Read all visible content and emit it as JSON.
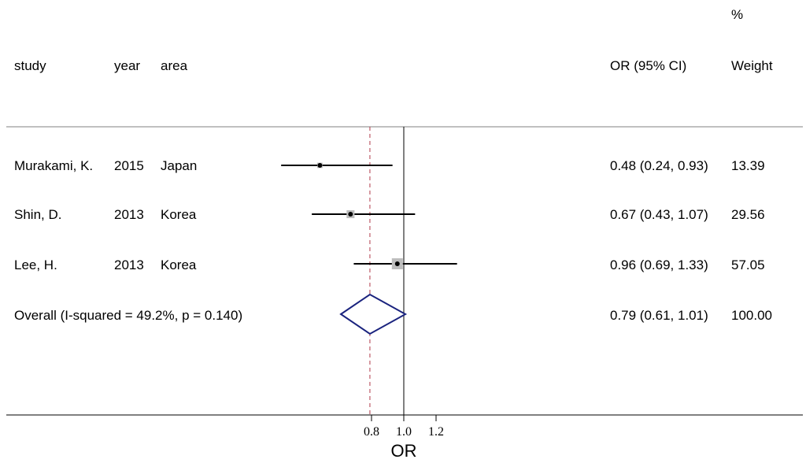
{
  "chart_data": {
    "type": "forest",
    "columns": {
      "study": "study",
      "year": "year",
      "area": "area",
      "estimate": "OR (95% CI)",
      "weight_unit": "%",
      "weight": "Weight"
    },
    "studies": [
      {
        "study": "Murakami, K.",
        "year": "2015",
        "area": "Japan",
        "or": 0.48,
        "lo": 0.24,
        "hi": 0.93,
        "ci_text": "0.48 (0.24, 0.93)",
        "weight": 13.39,
        "weight_text": "13.39"
      },
      {
        "study": "Shin, D.",
        "year": "2013",
        "area": "Korea",
        "or": 0.67,
        "lo": 0.43,
        "hi": 1.07,
        "ci_text": "0.67 (0.43, 1.07)",
        "weight": 29.56,
        "weight_text": "29.56"
      },
      {
        "study": "Lee, H.",
        "year": "2013",
        "area": "Korea",
        "or": 0.96,
        "lo": 0.69,
        "hi": 1.33,
        "ci_text": "0.96 (0.69, 1.33)",
        "weight": 57.05,
        "weight_text": "57.05"
      }
    ],
    "overall": {
      "label": "Overall  (I-squared = 49.2%, p = 0.140)",
      "or": 0.79,
      "lo": 0.61,
      "hi": 1.01,
      "ci_text": "0.79 (0.61, 1.01)",
      "weight_text": "100.00"
    },
    "x_axis": {
      "title": "OR",
      "ticks": [
        0.8,
        1.0,
        1.2
      ],
      "tick_labels": [
        "0.8",
        "1.0",
        "1.2"
      ],
      "range": [
        0.48,
        1.33
      ]
    },
    "null_line": 1.0,
    "reference_line": 0.79,
    "colors": {
      "text": "#000000",
      "ci_line": "#000000",
      "weight_box": "#bdbdbd",
      "diamond": "#1a237e",
      "reference_line": "#b0394a",
      "separator": "#808080"
    }
  }
}
